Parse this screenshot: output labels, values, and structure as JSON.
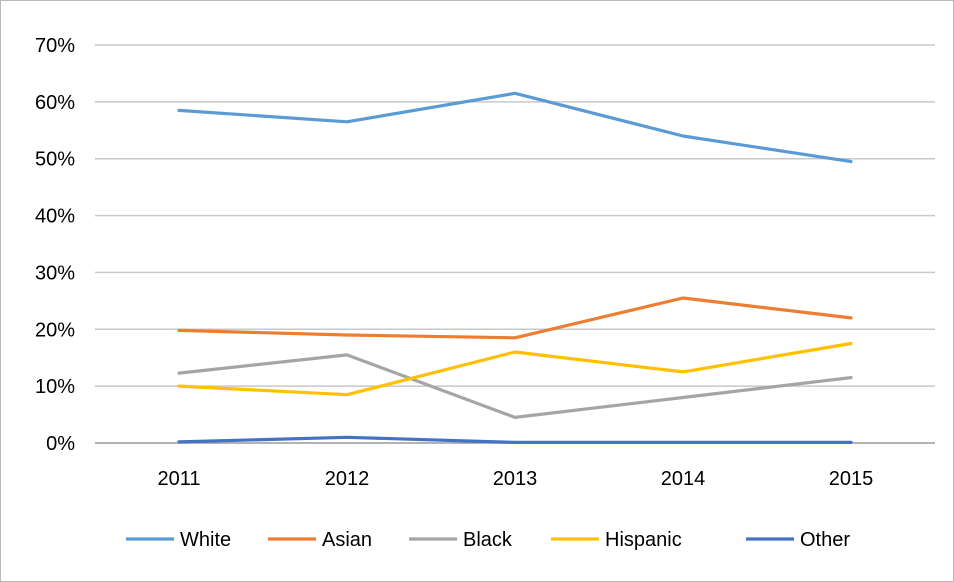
{
  "chart_data": {
    "type": "line",
    "title": "",
    "xlabel": "",
    "ylabel": "",
    "categories": [
      "2011",
      "2012",
      "2013",
      "2014",
      "2015"
    ],
    "y_ticks": [
      "0%",
      "10%",
      "20%",
      "30%",
      "40%",
      "50%",
      "60%",
      "70%"
    ],
    "ylim": [
      0,
      70
    ],
    "grid": "horizontal",
    "legend_position": "bottom",
    "series": [
      {
        "name": "White",
        "color": "#5b9bd5",
        "values": [
          58.5,
          56.5,
          61.5,
          54.0,
          49.5
        ]
      },
      {
        "name": "Asian",
        "color": "#ed7d31",
        "values": [
          19.8,
          19.0,
          18.5,
          25.5,
          22.0
        ]
      },
      {
        "name": "Black",
        "color": "#a5a5a5",
        "values": [
          12.3,
          15.5,
          4.5,
          8.0,
          11.5
        ]
      },
      {
        "name": "Hispanic",
        "color": "#ffc000",
        "values": [
          10.0,
          8.5,
          16.0,
          12.5,
          17.5
        ]
      },
      {
        "name": "Other",
        "color": "#4472c4",
        "values": [
          0.2,
          1.0,
          0.1,
          0.1,
          0.1
        ]
      }
    ]
  }
}
